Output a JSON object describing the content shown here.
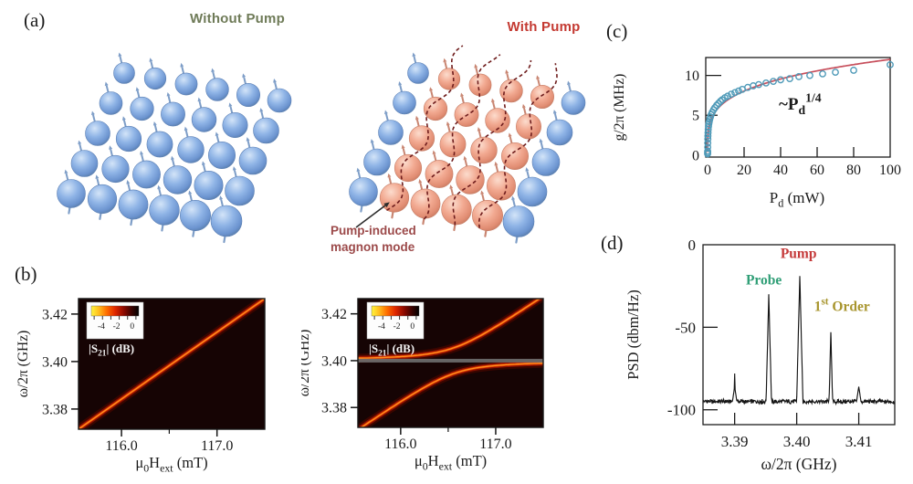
{
  "panels": {
    "a": {
      "label": "(a)",
      "without_title": "Without Pump",
      "with_title": "With Pump",
      "annotation": {
        "line1": "Pump-induced",
        "line2": "magnon mode"
      },
      "lattice": {
        "rows": 5,
        "cols": 6,
        "pumped_cols_right": [
          1,
          2,
          3,
          4
        ]
      },
      "colors": {
        "without_title": "#6f7b58",
        "with_title": "#c43a32",
        "annotation": "#9c4a4a",
        "blue_sphere": "#7aa3da",
        "salmon_sphere": "#efa18b",
        "mode_dash": "#6f1d1d"
      }
    },
    "b": {
      "label": "(b)"
    },
    "c": {
      "label": "(c)"
    },
    "d": {
      "label": "(d)"
    }
  },
  "chart_data": [
    {
      "id": "b_left",
      "type": "heatmap",
      "description": "uncoupled magnon mode, single diagonal resonance line",
      "xlabel_segments": [
        {
          "t": "μ"
        },
        {
          "t": "0",
          "sub": true
        },
        {
          "t": "H"
        },
        {
          "t": "ext",
          "sub": true
        },
        {
          "t": " (mT)"
        }
      ],
      "ylabel": "ω/2π (GHz)",
      "x_range": [
        115.55,
        117.5
      ],
      "y_range": [
        3.3715,
        3.4265
      ],
      "x_ticks": [
        {
          "v": 116.0,
          "t": "116.0"
        },
        {
          "v": 117.0,
          "t": "117.0"
        }
      ],
      "x_minor_ticks": [
        116.5
      ],
      "y_ticks": [
        {
          "v": 3.38,
          "t": "3.38"
        },
        {
          "v": 3.4,
          "t": "3.40"
        },
        {
          "v": 3.42,
          "t": "3.42"
        }
      ],
      "colorbar": {
        "ticks": [
          "-4",
          "-2",
          "0"
        ],
        "label_segments": [
          {
            "t": "|S"
          },
          {
            "t": "21",
            "sub": true
          },
          {
            "t": "| (dB)"
          }
        ]
      },
      "magnon_line": {
        "x": [
          115.55,
          117.5
        ],
        "y": [
          3.3715,
          3.4265
        ]
      }
    },
    {
      "id": "b_right",
      "type": "heatmap",
      "description": "avoided crossing of magnon mode with pump-induced mode at 3.400 GHz",
      "xlabel_segments": [
        {
          "t": "μ"
        },
        {
          "t": "0",
          "sub": true
        },
        {
          "t": "H"
        },
        {
          "t": "ext",
          "sub": true
        },
        {
          "t": " (mT)"
        }
      ],
      "ylabel": "ω/2π (GHz)",
      "x_range": [
        115.55,
        117.5
      ],
      "y_range": [
        3.3715,
        3.4265
      ],
      "x_ticks": [
        {
          "v": 116.0,
          "t": "116.0"
        },
        {
          "v": 117.0,
          "t": "117.0"
        }
      ],
      "x_minor_ticks": [
        116.5
      ],
      "y_ticks": [
        {
          "v": 3.38,
          "t": "3.38"
        },
        {
          "v": 3.4,
          "t": "3.40"
        },
        {
          "v": 3.42,
          "t": "3.42"
        }
      ],
      "colorbar": {
        "ticks": [
          "-4",
          "-2",
          "0"
        ],
        "label_segments": [
          {
            "t": "|S"
          },
          {
            "t": "21",
            "sub": true
          },
          {
            "t": "| (dB)"
          }
        ]
      },
      "magnon_line": {
        "x": [
          115.55,
          117.5
        ],
        "y": [
          3.3715,
          3.4265
        ]
      },
      "cavity_freq_GHz": 3.4,
      "coupling_g_GHz": 0.0055,
      "feedthrough_y": 3.4
    },
    {
      "id": "c",
      "type": "scatter",
      "xlabel_segments": [
        {
          "t": "P"
        },
        {
          "t": "d",
          "sub": true
        },
        {
          "t": " (mW)"
        }
      ],
      "ylabel": "g/2π (MHz)",
      "x_range": [
        -1,
        100
      ],
      "y_range": [
        -0.25,
        12.25
      ],
      "x_ticks": [
        {
          "v": 0,
          "t": "0"
        },
        {
          "v": 20,
          "t": "20"
        },
        {
          "v": 40,
          "t": "40"
        },
        {
          "v": 60,
          "t": "60"
        },
        {
          "v": 80,
          "t": "80"
        },
        {
          "v": 100,
          "t": "100"
        }
      ],
      "y_ticks": [
        {
          "v": 0,
          "t": "0"
        },
        {
          "v": 5,
          "t": "5"
        },
        {
          "v": 10,
          "t": "10"
        }
      ],
      "annotation_segments": [
        {
          "t": "~P"
        },
        {
          "t": "d",
          "sub": true
        },
        {
          "t": "1/4",
          "sup": true
        }
      ],
      "fit": {
        "type": "power",
        "coef": 3.8,
        "exp": 0.25
      },
      "point_color": "#4f9ab8",
      "fit_color": "#c74f5c",
      "points": [
        [
          0.02,
          0.15
        ],
        [
          0.03,
          0.3
        ],
        [
          0.05,
          0.5
        ],
        [
          0.08,
          1.0
        ],
        [
          0.1,
          1.5
        ],
        [
          0.14,
          2.0
        ],
        [
          0.18,
          2.4
        ],
        [
          0.25,
          2.8
        ],
        [
          0.35,
          3.2
        ],
        [
          0.5,
          3.6
        ],
        [
          0.7,
          3.95
        ],
        [
          0.9,
          4.2
        ],
        [
          1.2,
          4.5
        ],
        [
          1.6,
          4.8
        ],
        [
          2,
          5.1
        ],
        [
          2.6,
          5.4
        ],
        [
          3.3,
          5.7
        ],
        [
          4,
          5.95
        ],
        [
          5,
          6.25
        ],
        [
          6,
          6.5
        ],
        [
          7,
          6.75
        ],
        [
          8,
          6.95
        ],
        [
          9.5,
          7.2
        ],
        [
          11,
          7.4
        ],
        [
          13,
          7.65
        ],
        [
          15,
          7.85
        ],
        [
          17,
          8.05
        ],
        [
          19,
          8.25
        ],
        [
          22,
          8.5
        ],
        [
          25,
          8.7
        ],
        [
          28,
          8.85
        ],
        [
          32,
          9.05
        ],
        [
          36,
          9.25
        ],
        [
          40,
          9.45
        ],
        [
          45,
          9.6
        ],
        [
          50,
          9.85
        ],
        [
          56,
          10.0
        ],
        [
          63,
          10.2
        ],
        [
          70,
          10.4
        ],
        [
          80,
          10.65
        ],
        [
          100,
          11.35
        ]
      ]
    },
    {
      "id": "d",
      "type": "line",
      "xlabel_segments": [
        {
          "t": "ω/2π  (GHz)"
        }
      ],
      "ylabel": "PSD (dbm/Hz)",
      "x_range": [
        3.3849,
        3.4158
      ],
      "y_range": [
        -109,
        0
      ],
      "x_ticks": [
        {
          "v": 3.39,
          "t": "3.39"
        },
        {
          "v": 3.4,
          "t": "3.40"
        },
        {
          "v": 3.41,
          "t": "3.41"
        }
      ],
      "y_ticks": [
        {
          "v": 0,
          "t": "0"
        },
        {
          "v": -50,
          "t": "-50"
        },
        {
          "v": -100,
          "t": "-100"
        }
      ],
      "baseline_dbm": -95,
      "noise_amp": 1.2,
      "trace_color": "#151515",
      "peaks": [
        {
          "freq": 3.39,
          "psd": -78
        },
        {
          "freq": 3.3955,
          "psd": -30,
          "label_segments": [
            {
              "t": "Probe"
            }
          ],
          "label_pos": [
            3.3947,
            -24
          ],
          "color": "#2f9e76"
        },
        {
          "freq": 3.4005,
          "psd": -19,
          "label_segments": [
            {
              "t": "Pump"
            }
          ],
          "label_pos": [
            3.4003,
            -8
          ],
          "color": "#c53a3a"
        },
        {
          "freq": 3.4055,
          "psd": -53,
          "label_segments": [
            {
              "t": "1"
            },
            {
              "t": "st",
              "sup": true
            },
            {
              "t": " Order"
            }
          ],
          "label_pos": [
            3.4073,
            -40
          ],
          "color": "#a8952e"
        },
        {
          "freq": 3.41,
          "psd": -88
        }
      ]
    }
  ]
}
